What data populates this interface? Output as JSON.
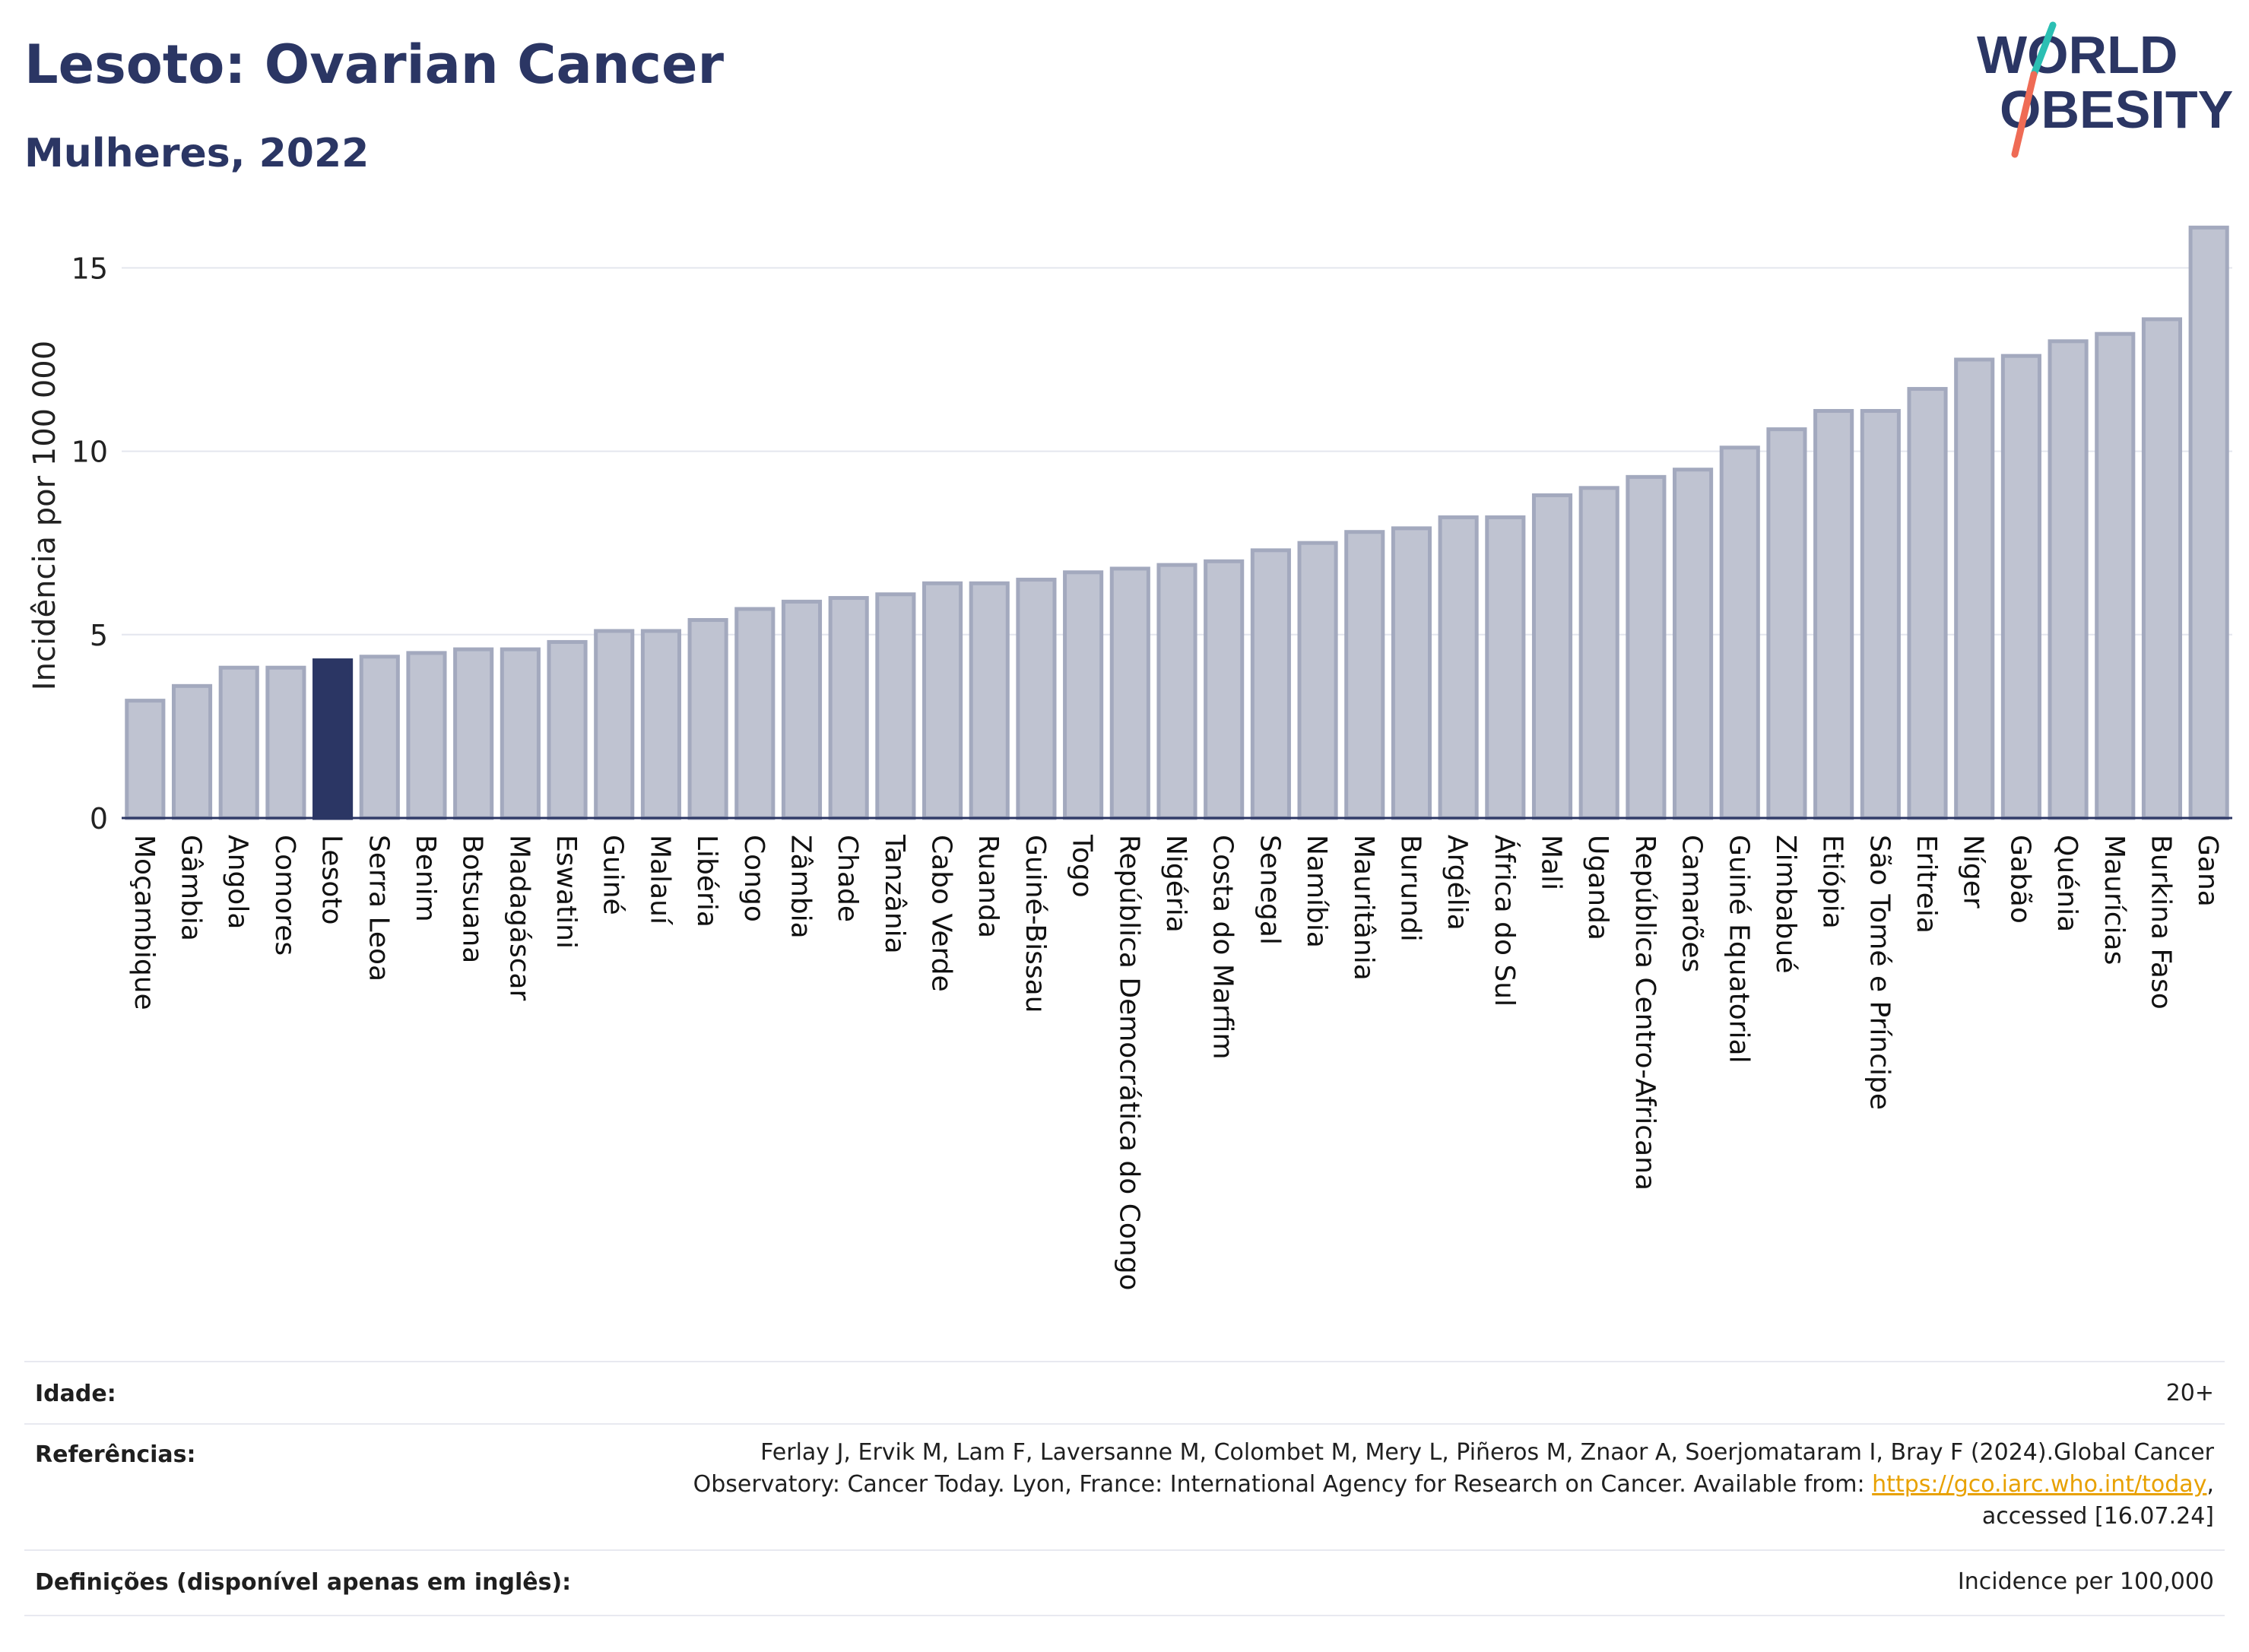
{
  "header": {
    "title": "Lesoto: Ovarian Cancer",
    "subtitle": "Mulheres, 2022"
  },
  "logo": {
    "line1": "WORLD",
    "line2": "OBESITY"
  },
  "chart_data": {
    "type": "bar",
    "ylabel": "Incidência por 100 000",
    "xlabel": "",
    "ylim": [
      0,
      16.5
    ],
    "yticks": [
      0,
      5,
      10,
      15
    ],
    "grid": true,
    "highlight": "Lesoto",
    "colors": {
      "bar": "#bfc3d1",
      "bar_edge": "#a3a9be",
      "highlight": "#2b3664",
      "grid": "#e4e6ee"
    },
    "categories": [
      "Moçambique",
      "Gâmbia",
      "Angola",
      "Comores",
      "Lesoto",
      "Serra Leoa",
      "Benim",
      "Botsuana",
      "Madagáscar",
      "Eswatini",
      "Guiné",
      "Malauí",
      "Libéria",
      "Congo",
      "Zâmbia",
      "Chade",
      "Tanzânia",
      "Cabo Verde",
      "Ruanda",
      "Guiné-Bissau",
      "Togo",
      "República Democrática do Congo",
      "Nigéria",
      "Costa do Marfim",
      "Senegal",
      "Namíbia",
      "Mauritânia",
      "Burundi",
      "Argélia",
      "África do Sul",
      "Mali",
      "Uganda",
      "República Centro-Africana",
      "Camarões",
      "Guiné Equatorial",
      "Zimbabué",
      "Etiópia",
      "São Tomé e Príncipe",
      "Eritreia",
      "Níger",
      "Gabão",
      "Quénia",
      "Maurícias",
      "Burkina Faso",
      "Gana"
    ],
    "values": [
      3.2,
      3.6,
      4.1,
      4.1,
      4.3,
      4.4,
      4.5,
      4.6,
      4.6,
      4.8,
      5.1,
      5.1,
      5.4,
      5.7,
      5.9,
      6.0,
      6.1,
      6.4,
      6.4,
      6.5,
      6.7,
      6.8,
      6.9,
      7.0,
      7.3,
      7.5,
      7.8,
      7.9,
      8.2,
      8.2,
      8.8,
      9.0,
      9.3,
      9.5,
      10.1,
      10.6,
      11.1,
      11.1,
      11.7,
      12.5,
      12.6,
      13.0,
      13.2,
      13.6,
      16.1
    ]
  },
  "meta": {
    "age_label": "Idade:",
    "age_value": "20+",
    "refs_label": "Referências:",
    "refs_line1": "Ferlay J, Ervik M, Lam F, Laversanne M, Colombet M, Mery L, Piñeros M, Znaor A, Soerjomataram I, Bray F (2024).Global Cancer",
    "refs_line2_prefix": "Observatory: Cancer Today. Lyon, France: International Agency for Research on Cancer. Available from: ",
    "refs_link": "https://gco.iarc.who.int/today",
    "refs_line2_suffix": ",",
    "refs_line3": "accessed [16.07.24]",
    "defs_label": "Definições (disponível apenas em inglês):",
    "defs_value": "Incidence per 100,000"
  }
}
